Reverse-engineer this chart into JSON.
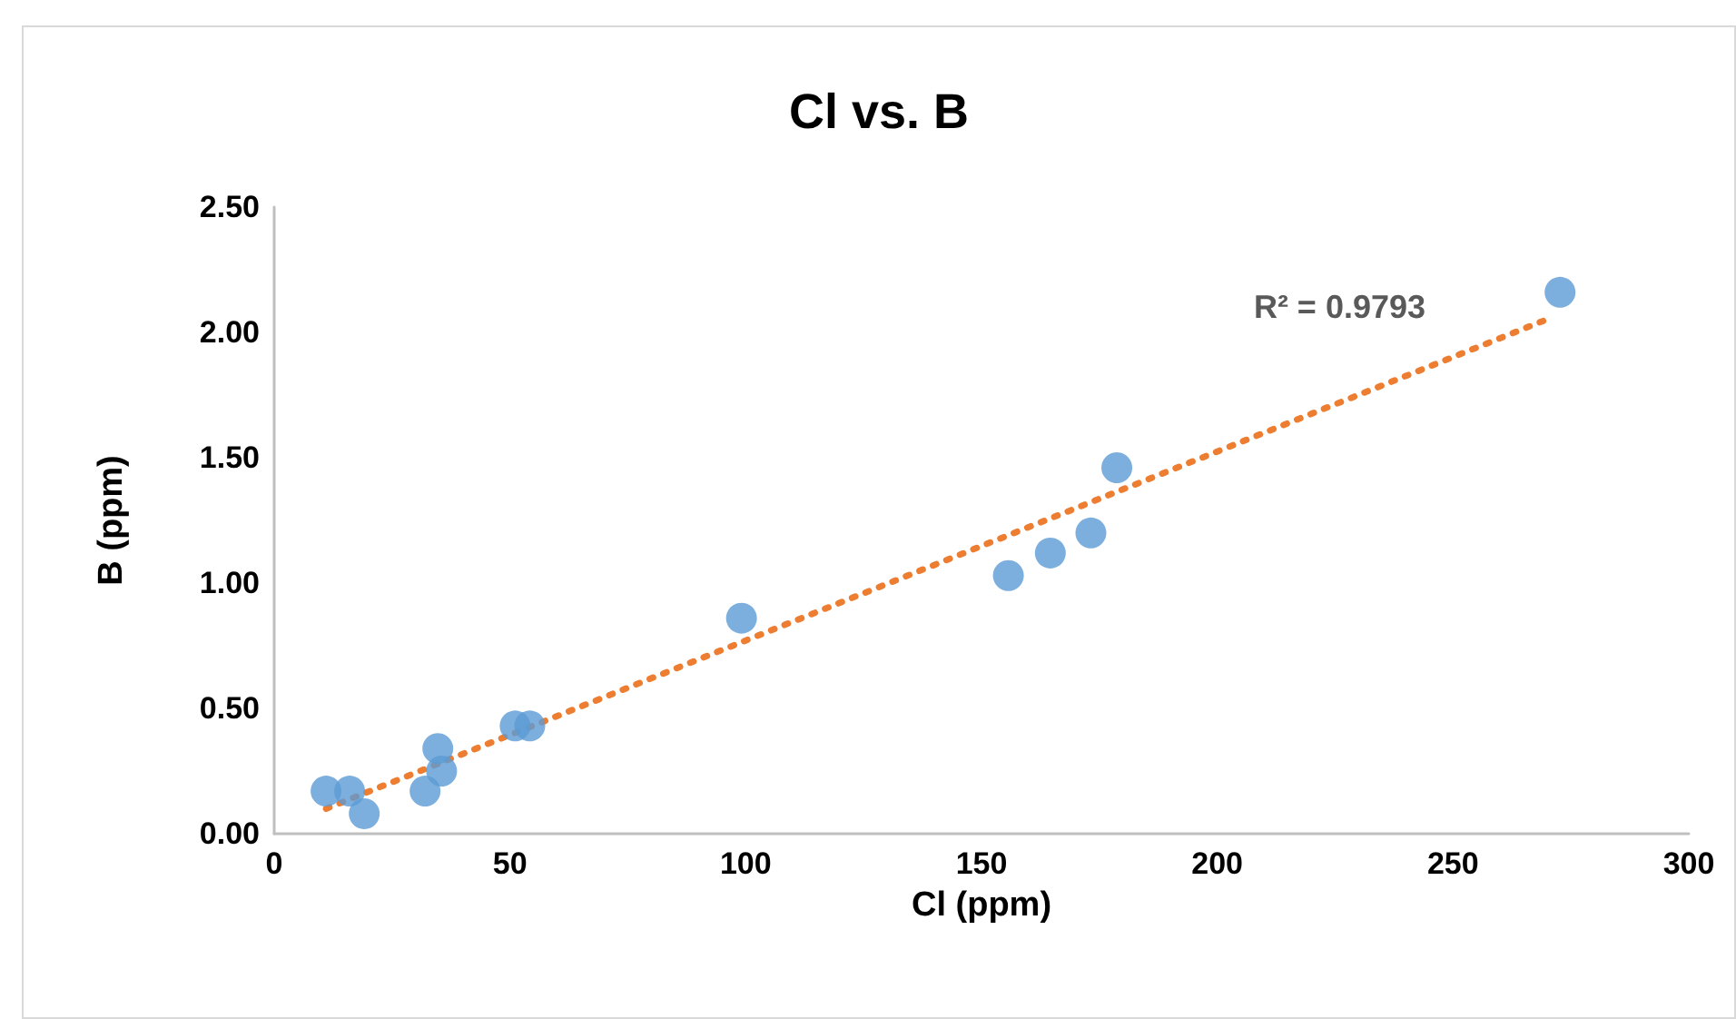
{
  "chart_data": {
    "type": "scatter",
    "title": "Cl vs. B",
    "xlabel": "Cl (ppm)",
    "ylabel": "B (ppm)",
    "annotations": [
      "R² = 0.9793"
    ],
    "xlim": [
      0,
      300
    ],
    "xticks": [
      0,
      50,
      100,
      150,
      200,
      250,
      300
    ],
    "ylim": [
      0,
      2.5
    ],
    "yticks": [
      {
        "value": 0,
        "label": "0.00"
      },
      {
        "value": 0.5,
        "label": "0.50"
      },
      {
        "value": 1,
        "label": "1.00"
      },
      {
        "value": 1.5,
        "label": "1.50"
      },
      {
        "value": 2,
        "label": "2.00"
      },
      {
        "value": 2.5,
        "label": "2.50"
      }
    ],
    "grid": false,
    "marker": "circle",
    "series": [
      {
        "color": "#5b9bd5",
        "x": [
          11,
          16,
          19.1,
          32,
          34.7,
          35.5,
          51.1,
          54.2,
          99.1,
          155.7,
          164.6,
          173.2,
          178.7,
          272.7
        ],
        "values": [
          0.17,
          0.17,
          0.08,
          0.17,
          0.34,
          0.25,
          0.43,
          0.43,
          0.86,
          1.03,
          1.12,
          1.2,
          1.46,
          2.16
        ]
      },
      {
        "type": "line",
        "marker": "none",
        "color": "#ed7d31",
        "line_style": "dotted",
        "x": [
          11,
          271
        ],
        "values": [
          0.1,
          2.06
        ]
      }
    ]
  }
}
